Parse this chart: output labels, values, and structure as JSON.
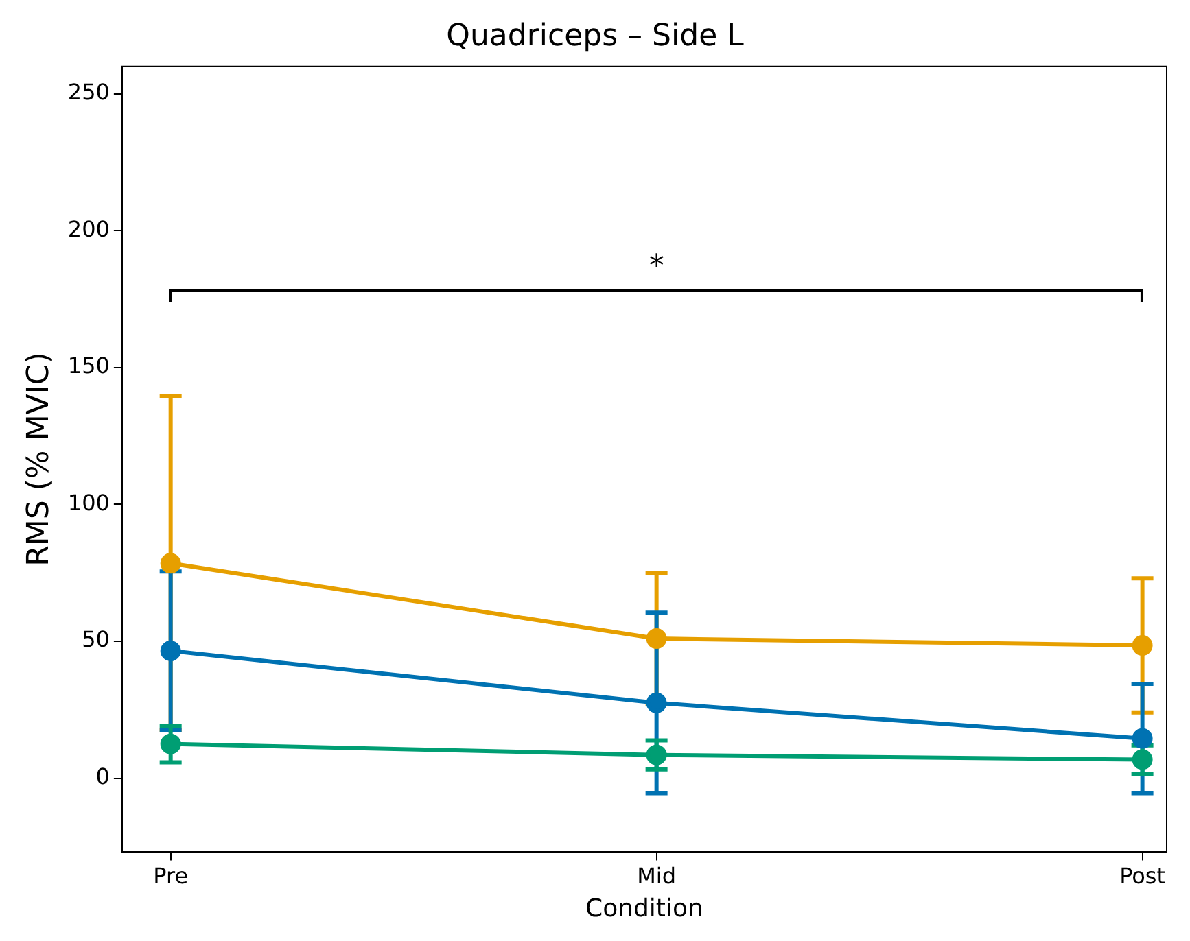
{
  "chart_data": {
    "type": "line",
    "title": "Quadriceps – Side L",
    "xlabel": "Condition",
    "ylabel": "RMS (% MVIC)",
    "categories": [
      "Pre",
      "Mid",
      "Post"
    ],
    "series": [
      {
        "color": "#e69f00",
        "values": [
          78.5,
          51,
          48.5
        ],
        "errors": [
          61,
          24,
          24.5
        ]
      },
      {
        "color": "#0072b2",
        "values": [
          46.5,
          27.5,
          14.5
        ],
        "errors": [
          29,
          33,
          20
        ]
      },
      {
        "color": "#009e73",
        "values": [
          12.5,
          8.5,
          6.8
        ],
        "errors": [
          6.7,
          5.3,
          5.2
        ]
      }
    ],
    "ylim": [
      -27,
      260
    ],
    "yticks": [
      0,
      50,
      100,
      150,
      200,
      250
    ],
    "grid": false,
    "legend": false,
    "marker": "circle",
    "line_style": "solid",
    "annotations": [
      "*"
    ]
  }
}
